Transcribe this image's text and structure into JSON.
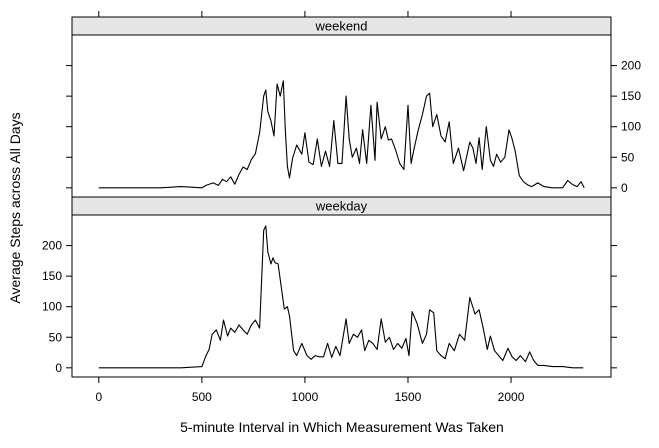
{
  "chart_data": {
    "type": "line",
    "layout": "lattice-panels",
    "xlabel": "5-minute Interval in Which Measurement Was Taken",
    "ylabel": "Average Steps across All Days",
    "xlim": [
      -130,
      2485
    ],
    "ylim": [
      -15,
      250
    ],
    "x_ticks": [
      "0",
      "500",
      "1000",
      "1500",
      "2000"
    ],
    "x_tick_values": [
      0,
      500,
      1000,
      1500,
      2000
    ],
    "y_ticks": [
      "0",
      "50",
      "100",
      "150",
      "200"
    ],
    "y_tick_values": [
      0,
      50,
      100,
      150,
      200
    ],
    "grid": false,
    "legend": "none",
    "panels": [
      {
        "strip": "weekend",
        "y_axis_side": "right",
        "x": [
          0,
          100,
          200,
          300,
          400,
          500,
          520,
          555,
          580,
          600,
          620,
          640,
          660,
          680,
          700,
          720,
          740,
          760,
          780,
          800,
          810,
          820,
          835,
          850,
          865,
          880,
          895,
          905,
          915,
          925,
          940,
          960,
          985,
          1000,
          1020,
          1040,
          1060,
          1080,
          1100,
          1120,
          1140,
          1160,
          1180,
          1200,
          1215,
          1230,
          1250,
          1265,
          1280,
          1300,
          1320,
          1340,
          1350,
          1370,
          1390,
          1405,
          1420,
          1440,
          1460,
          1480,
          1500,
          1515,
          1530,
          1550,
          1570,
          1590,
          1605,
          1620,
          1640,
          1660,
          1680,
          1700,
          1720,
          1745,
          1770,
          1800,
          1815,
          1830,
          1845,
          1860,
          1880,
          1900,
          1915,
          1930,
          1950,
          1970,
          1990,
          2005,
          2020,
          2040,
          2060,
          2080,
          2100,
          2130,
          2160,
          2200,
          2250,
          2275,
          2300,
          2320,
          2340,
          2355
        ],
        "y": [
          0,
          0,
          0,
          0,
          2,
          0,
          4,
          8,
          4,
          14,
          10,
          18,
          6,
          22,
          34,
          30,
          46,
          56,
          90,
          150,
          160,
          125,
          110,
          85,
          170,
          150,
          175,
          95,
          35,
          16,
          48,
          70,
          55,
          90,
          42,
          38,
          80,
          35,
          60,
          35,
          110,
          40,
          40,
          150,
          80,
          50,
          65,
          40,
          95,
          40,
          135,
          45,
          140,
          80,
          100,
          78,
          80,
          62,
          40,
          30,
          135,
          40,
          65,
          95,
          120,
          150,
          155,
          100,
          120,
          85,
          75,
          108,
          40,
          65,
          28,
          75,
          65,
          40,
          82,
          30,
          100,
          45,
          35,
          55,
          42,
          50,
          95,
          80,
          60,
          20,
          10,
          5,
          2,
          8,
          2,
          0,
          0,
          12,
          5,
          2,
          10,
          0
        ]
      },
      {
        "strip": "weekday",
        "y_axis_side": "left",
        "x": [
          0,
          100,
          200,
          300,
          400,
          500,
          520,
          535,
          550,
          570,
          590,
          605,
          625,
          640,
          660,
          680,
          700,
          720,
          740,
          760,
          780,
          800,
          810,
          820,
          835,
          845,
          855,
          870,
          900,
          915,
          925,
          945,
          960,
          985,
          1010,
          1030,
          1050,
          1070,
          1090,
          1110,
          1130,
          1150,
          1170,
          1200,
          1215,
          1235,
          1255,
          1275,
          1290,
          1310,
          1330,
          1350,
          1370,
          1390,
          1410,
          1430,
          1450,
          1470,
          1490,
          1505,
          1520,
          1545,
          1570,
          1590,
          1605,
          1625,
          1640,
          1660,
          1680,
          1700,
          1725,
          1750,
          1775,
          1800,
          1825,
          1845,
          1865,
          1885,
          1900,
          1920,
          1940,
          1960,
          1985,
          2005,
          2025,
          2045,
          2070,
          2090,
          2110,
          2130,
          2160,
          2200,
          2250,
          2300,
          2350
        ],
        "y": [
          0,
          0,
          0,
          0,
          0,
          2,
          20,
          30,
          55,
          62,
          45,
          78,
          52,
          65,
          58,
          70,
          62,
          55,
          70,
          78,
          65,
          225,
          232,
          190,
          170,
          180,
          172,
          170,
          96,
          100,
          85,
          28,
          20,
          40,
          20,
          14,
          20,
          18,
          18,
          40,
          17,
          35,
          20,
          80,
          40,
          55,
          50,
          62,
          28,
          45,
          40,
          30,
          80,
          42,
          50,
          30,
          40,
          32,
          48,
          20,
          92,
          72,
          40,
          55,
          95,
          90,
          28,
          20,
          15,
          40,
          28,
          55,
          45,
          115,
          88,
          95,
          65,
          30,
          52,
          28,
          20,
          12,
          32,
          18,
          12,
          20,
          10,
          26,
          12,
          4,
          4,
          2,
          2,
          0,
          0
        ]
      }
    ]
  }
}
